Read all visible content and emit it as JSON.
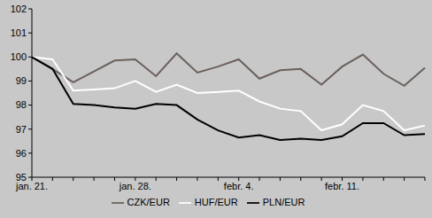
{
  "chart_data": {
    "type": "line",
    "categories": [
      "jan. 21.",
      null,
      null,
      null,
      null,
      "jan. 28.",
      null,
      null,
      null,
      null,
      "febr. 4.",
      null,
      null,
      null,
      null,
      "febr. 11.",
      null,
      null,
      null,
      null
    ],
    "series": [
      {
        "name": "CZK/EUR",
        "color": "#6b605c",
        "values": [
          100,
          99.5,
          98.95,
          99.4,
          99.85,
          99.9,
          99.2,
          100.15,
          99.35,
          99.6,
          99.9,
          99.1,
          99.45,
          99.5,
          98.85,
          99.6,
          100.1,
          99.3,
          98.8,
          99.55
        ]
      },
      {
        "name": "HUF/EUR",
        "color": "#ffffff",
        "values": [
          100,
          99.9,
          98.6,
          98.65,
          98.7,
          99.0,
          98.55,
          98.85,
          98.5,
          98.55,
          98.6,
          98.15,
          97.85,
          97.75,
          96.95,
          97.2,
          98.0,
          97.75,
          96.95,
          97.15
        ]
      },
      {
        "name": "PLN/EUR",
        "color": "#000000",
        "values": [
          100,
          99.5,
          98.05,
          98.0,
          97.9,
          97.85,
          98.05,
          98.0,
          97.4,
          96.95,
          96.65,
          96.75,
          96.55,
          96.6,
          96.55,
          96.7,
          97.25,
          97.25,
          96.75,
          96.8
        ]
      }
    ],
    "ylim": [
      95,
      102
    ],
    "yticks": [
      95,
      96,
      97,
      98,
      99,
      100,
      101,
      102
    ],
    "grid": false,
    "legend": "bottom"
  }
}
